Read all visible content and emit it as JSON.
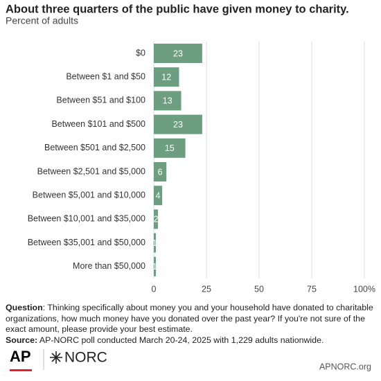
{
  "chart_data": {
    "type": "bar",
    "orientation": "horizontal",
    "title": "About three quarters of the public have given money to charity.",
    "subtitle": "Percent of adults",
    "categories": [
      "$0",
      "Between $1 and $50",
      "Between $51 and $100",
      "Between $101 and $500",
      "Between $501 and $2,500",
      "Between $2,501 and $5,000",
      "Between $5,001 and $10,000",
      "Between $10,001 and $35,000",
      "Between $35,001 and $50,000",
      "More than $50,000"
    ],
    "values": [
      23,
      12,
      13,
      23,
      15,
      6,
      4,
      2,
      1,
      1
    ],
    "color": "#6e9e80",
    "xlim": [
      0,
      100
    ],
    "xticks": [
      0,
      25,
      50,
      75,
      {
        "value": 100,
        "label": "100%"
      }
    ],
    "grid": true
  },
  "footer": {
    "question_label": "Question",
    "question_text": ": Thinking specifically about money you and your household have donated to charitable organizations, how much money have you donated over the past year? If you're not sure of the exact amount, please provide your best estimate.",
    "source_label": "Source:",
    "source_text": " AP-NORC poll conducted March 20-24, 2025 with 1,229 adults nationwide.",
    "logo_ap": "AP",
    "logo_norc": "NORC",
    "website": "APNORC.org"
  }
}
